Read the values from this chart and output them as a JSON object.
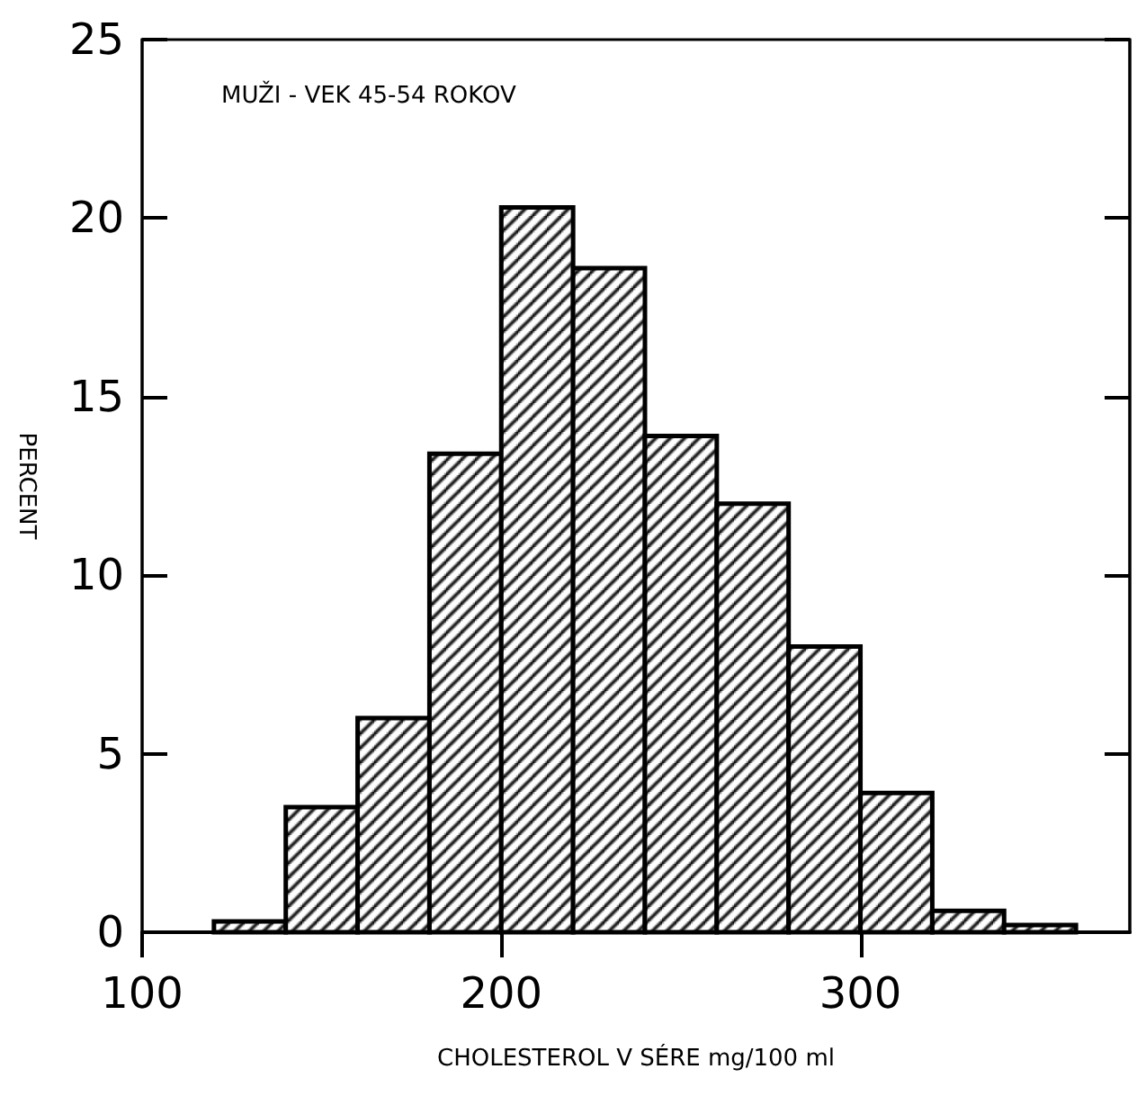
{
  "chart_data": {
    "type": "histogram",
    "title": "MUŽI - VEK 45-54 ROKOV",
    "xlabel": "CHOLESTEROL V SÉRE mg/100 ml",
    "ylabel": "PERCENT",
    "bins": [
      120,
      140,
      160,
      180,
      200,
      220,
      240,
      260,
      280,
      300,
      320,
      340,
      360
    ],
    "values": [
      0.3,
      3.5,
      6,
      13.4,
      20.3,
      18.6,
      13.9,
      12,
      8,
      3.9,
      0.6,
      0.2
    ],
    "color": "#000000",
    "xlim": [
      100,
      375
    ],
    "xticks": [
      100,
      200,
      300
    ],
    "ylim": [
      0,
      25
    ],
    "yticks": [
      0,
      5,
      10,
      15,
      20,
      25
    ],
    "grid": false
  }
}
